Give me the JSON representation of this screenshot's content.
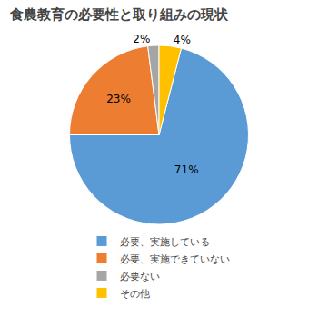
{
  "chart_data": {
    "type": "pie",
    "title": "食農教育の必要性と取り組みの現状",
    "categories": [
      "必要、実施している",
      "必要、実施できていない",
      "必要ない",
      "その他"
    ],
    "values": [
      71,
      23,
      2,
      4
    ],
    "value_labels": [
      "71%",
      "23%",
      "2%",
      "4%"
    ],
    "colors": [
      "#5B9BD5",
      "#ED7D31",
      "#A5A5A5",
      "#FFC000"
    ],
    "data_labels": true,
    "legend": "bottom"
  }
}
